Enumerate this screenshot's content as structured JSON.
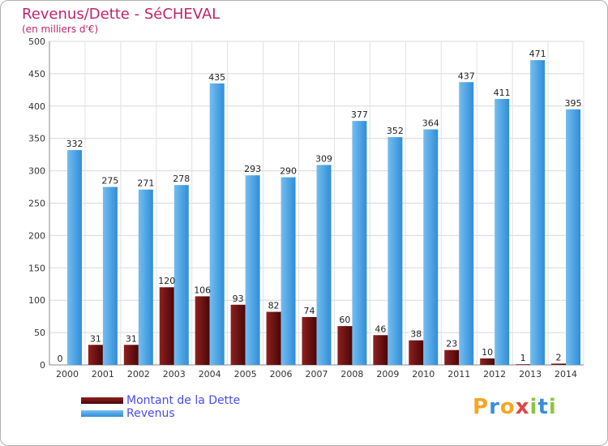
{
  "chart_data": {
    "type": "bar",
    "title": "Revenus/Dette - SéCHEVAL",
    "subtitle": "(en milliers d'€)",
    "categories": [
      "2000",
      "2001",
      "2002",
      "2003",
      "2004",
      "2005",
      "2006",
      "2007",
      "2008",
      "2009",
      "2010",
      "2011",
      "2012",
      "2013",
      "2014"
    ],
    "series": [
      {
        "name": "Montant de la Dette",
        "color": "#6b1010",
        "values": [
          0,
          31,
          31,
          120,
          106,
          93,
          82,
          74,
          60,
          46,
          38,
          23,
          10,
          1,
          2
        ]
      },
      {
        "name": "Revenus",
        "color": "#4ba3e6",
        "values": [
          332,
          275,
          271,
          278,
          435,
          293,
          290,
          309,
          377,
          352,
          364,
          437,
          411,
          471,
          395
        ]
      }
    ],
    "yticks": [
      "0",
      "50",
      "100",
      "150",
      "200",
      "250",
      "300",
      "350",
      "400",
      "450",
      "500"
    ],
    "ylim": [
      0,
      500
    ],
    "grid": true,
    "legend": "bottom-left",
    "xlabel": "",
    "ylabel": ""
  },
  "logo": {
    "letters": [
      "P",
      "r",
      "o",
      "x",
      "i",
      "t",
      "i"
    ],
    "colors": [
      "#f6a623",
      "#3b8fd9",
      "#f6a623",
      "#e04545",
      "#8cc63f",
      "#3b8fd9",
      "#8cc63f"
    ]
  }
}
